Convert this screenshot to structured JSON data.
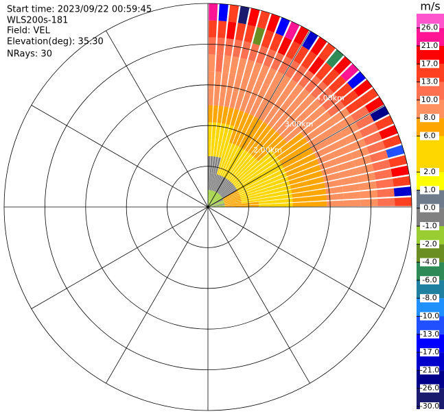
{
  "chart_data": {
    "type": "ppi",
    "header": [
      "Start time: 2023/09/22 00:59:45",
      "WLS200s-181",
      "Field: VEL",
      "Elevation(deg): 35.30",
      "NRays: 30"
    ],
    "unit": "m/s",
    "rlim": [
      0,
      5
    ],
    "rings": [
      1,
      2,
      3,
      4,
      5
    ],
    "ring_labels": [
      {
        "value": 2,
        "label": "2.00km"
      },
      {
        "value": 3,
        "label": "3.00km"
      },
      {
        "value": 4,
        "label": "4.00km"
      }
    ],
    "ticks": [
      {
        "value": -30,
        "label": "-30.0"
      },
      {
        "value": -26,
        "label": "-26.0"
      },
      {
        "value": -21,
        "label": "-21.0"
      },
      {
        "value": -17,
        "label": "-17.0"
      },
      {
        "value": -13,
        "label": "-13.0"
      },
      {
        "value": -10,
        "label": "-10.0"
      },
      {
        "value": -8,
        "label": "-8.0"
      },
      {
        "value": -6,
        "label": "-6.0"
      },
      {
        "value": -4,
        "label": "-4.0"
      },
      {
        "value": -2,
        "label": "-2.0"
      },
      {
        "value": -1,
        "label": "-1.0"
      },
      {
        "value": 0,
        "label": "0.0"
      },
      {
        "value": 1,
        "label": "1.0"
      },
      {
        "value": 2,
        "label": "2.0"
      },
      {
        "value": 6,
        "label": "6.0"
      },
      {
        "value": 8,
        "label": "8.0"
      },
      {
        "value": 10,
        "label": "10.0"
      },
      {
        "value": 13,
        "label": "13.0"
      },
      {
        "value": 17,
        "label": "17.0"
      },
      {
        "value": 21,
        "label": "21.0"
      },
      {
        "value": 26,
        "label": "26.0"
      }
    ],
    "colors": [
      "#1a1a6e",
      "#00008b",
      "#0000cd",
      "#0000ff",
      "#2050ff",
      "#1e90ff",
      "#2080a0",
      "#2e8b57",
      "#6b8e23",
      "#9acd32",
      "#808080",
      "#6e7b8b",
      "#ffff00",
      "#ffd700",
      "#ffa500",
      "#ff9060",
      "#ff7050",
      "#ff4020",
      "#ff0000",
      "#ff1493",
      "#ff55cc"
    ],
    "field": [
      [
        -1.5,
        -0.5,
        -0.5,
        4,
        4,
        7,
        9,
        9,
        9,
        11,
        15,
        24
      ],
      [
        -1.5,
        -0.5,
        -0.5,
        4,
        4,
        7,
        9,
        9,
        11,
        11,
        15,
        -15
      ],
      [
        -1.5,
        -0.5,
        -0.5,
        4,
        4,
        7,
        9,
        9,
        9,
        11,
        18,
        15
      ],
      [
        -1.5,
        -0.5,
        -0.5,
        4,
        4,
        7,
        9,
        9,
        9,
        11,
        15,
        -28
      ],
      [
        -1.5,
        -0.5,
        -0.5,
        4,
        4,
        7,
        9,
        9,
        9,
        11,
        15,
        18
      ],
      [
        -1.5,
        -0.5,
        4,
        4,
        4,
        7,
        9,
        9,
        9,
        11,
        -3,
        15
      ],
      [
        -1.5,
        -0.5,
        4,
        4,
        7,
        7,
        9,
        9,
        9,
        11,
        15,
        18
      ],
      [
        -1.5,
        -0.5,
        4,
        4,
        7,
        7,
        9,
        9,
        9,
        11,
        15,
        -15
      ],
      [
        -1.5,
        -0.5,
        4,
        4,
        7,
        7,
        9,
        9,
        9,
        11,
        18,
        24
      ],
      [
        -1.5,
        -0.5,
        4,
        4,
        7,
        7,
        9,
        9,
        9,
        11,
        15,
        18
      ],
      [
        -1.5,
        -0.5,
        4,
        4,
        7,
        7,
        9,
        9,
        9,
        11,
        15,
        -21
      ],
      [
        -1.5,
        -0.5,
        4,
        4,
        7,
        7,
        9,
        9,
        9,
        11,
        15,
        18
      ],
      [
        -1.5,
        -0.5,
        4,
        4,
        7,
        7,
        9,
        9,
        9,
        11,
        18,
        15
      ],
      [
        -1.5,
        -0.5,
        4,
        4,
        7,
        7,
        9,
        9,
        9,
        11,
        15,
        -5
      ],
      [
        -1.5,
        -0.5,
        4,
        4,
        7,
        7,
        9,
        9,
        9,
        11,
        15,
        18
      ],
      [
        -1.5,
        -0.5,
        4,
        4,
        7,
        7,
        9,
        9,
        9,
        11,
        15,
        24
      ],
      [
        -1.5,
        -0.5,
        4,
        4,
        4,
        7,
        9,
        9,
        9,
        11,
        15,
        -17
      ],
      [
        -1.5,
        -0.5,
        4,
        4,
        4,
        7,
        7,
        9,
        9,
        11,
        15,
        18
      ],
      [
        -1.5,
        -0.5,
        4,
        4,
        4,
        7,
        7,
        9,
        9,
        9,
        15,
        15
      ],
      [
        -1.5,
        -0.5,
        4,
        4,
        4,
        7,
        7,
        9,
        9,
        9,
        11,
        18
      ],
      [
        -0.5,
        7,
        4,
        4,
        4,
        7,
        7,
        9,
        9,
        9,
        11,
        -26
      ],
      [
        -0.5,
        7,
        4,
        4,
        4,
        7,
        7,
        9,
        9,
        9,
        11,
        15
      ],
      [
        -1.5,
        7,
        4,
        4,
        4,
        7,
        7,
        9,
        9,
        9,
        11,
        18
      ],
      [
        -1.5,
        7,
        4,
        4,
        4,
        7,
        7,
        9,
        9,
        9,
        11,
        15
      ],
      [
        -1.5,
        7,
        4,
        4,
        4,
        7,
        7,
        9,
        9,
        9,
        11,
        -13
      ],
      [
        -1.5,
        7,
        4,
        4,
        4,
        7,
        7,
        9,
        9,
        9,
        11,
        15
      ],
      [
        -0.5,
        7,
        4,
        4,
        4,
        7,
        7,
        9,
        9,
        9,
        11,
        18
      ],
      [
        -0.5,
        7,
        4,
        4,
        4,
        7,
        7,
        9,
        9,
        9,
        11,
        15
      ],
      [
        -1.5,
        7,
        7,
        4,
        4,
        7,
        7,
        9,
        9,
        9,
        11,
        -21
      ],
      [
        -1.5,
        7,
        7,
        4,
        4,
        7,
        7,
        9,
        9,
        9,
        11,
        15
      ]
    ]
  }
}
